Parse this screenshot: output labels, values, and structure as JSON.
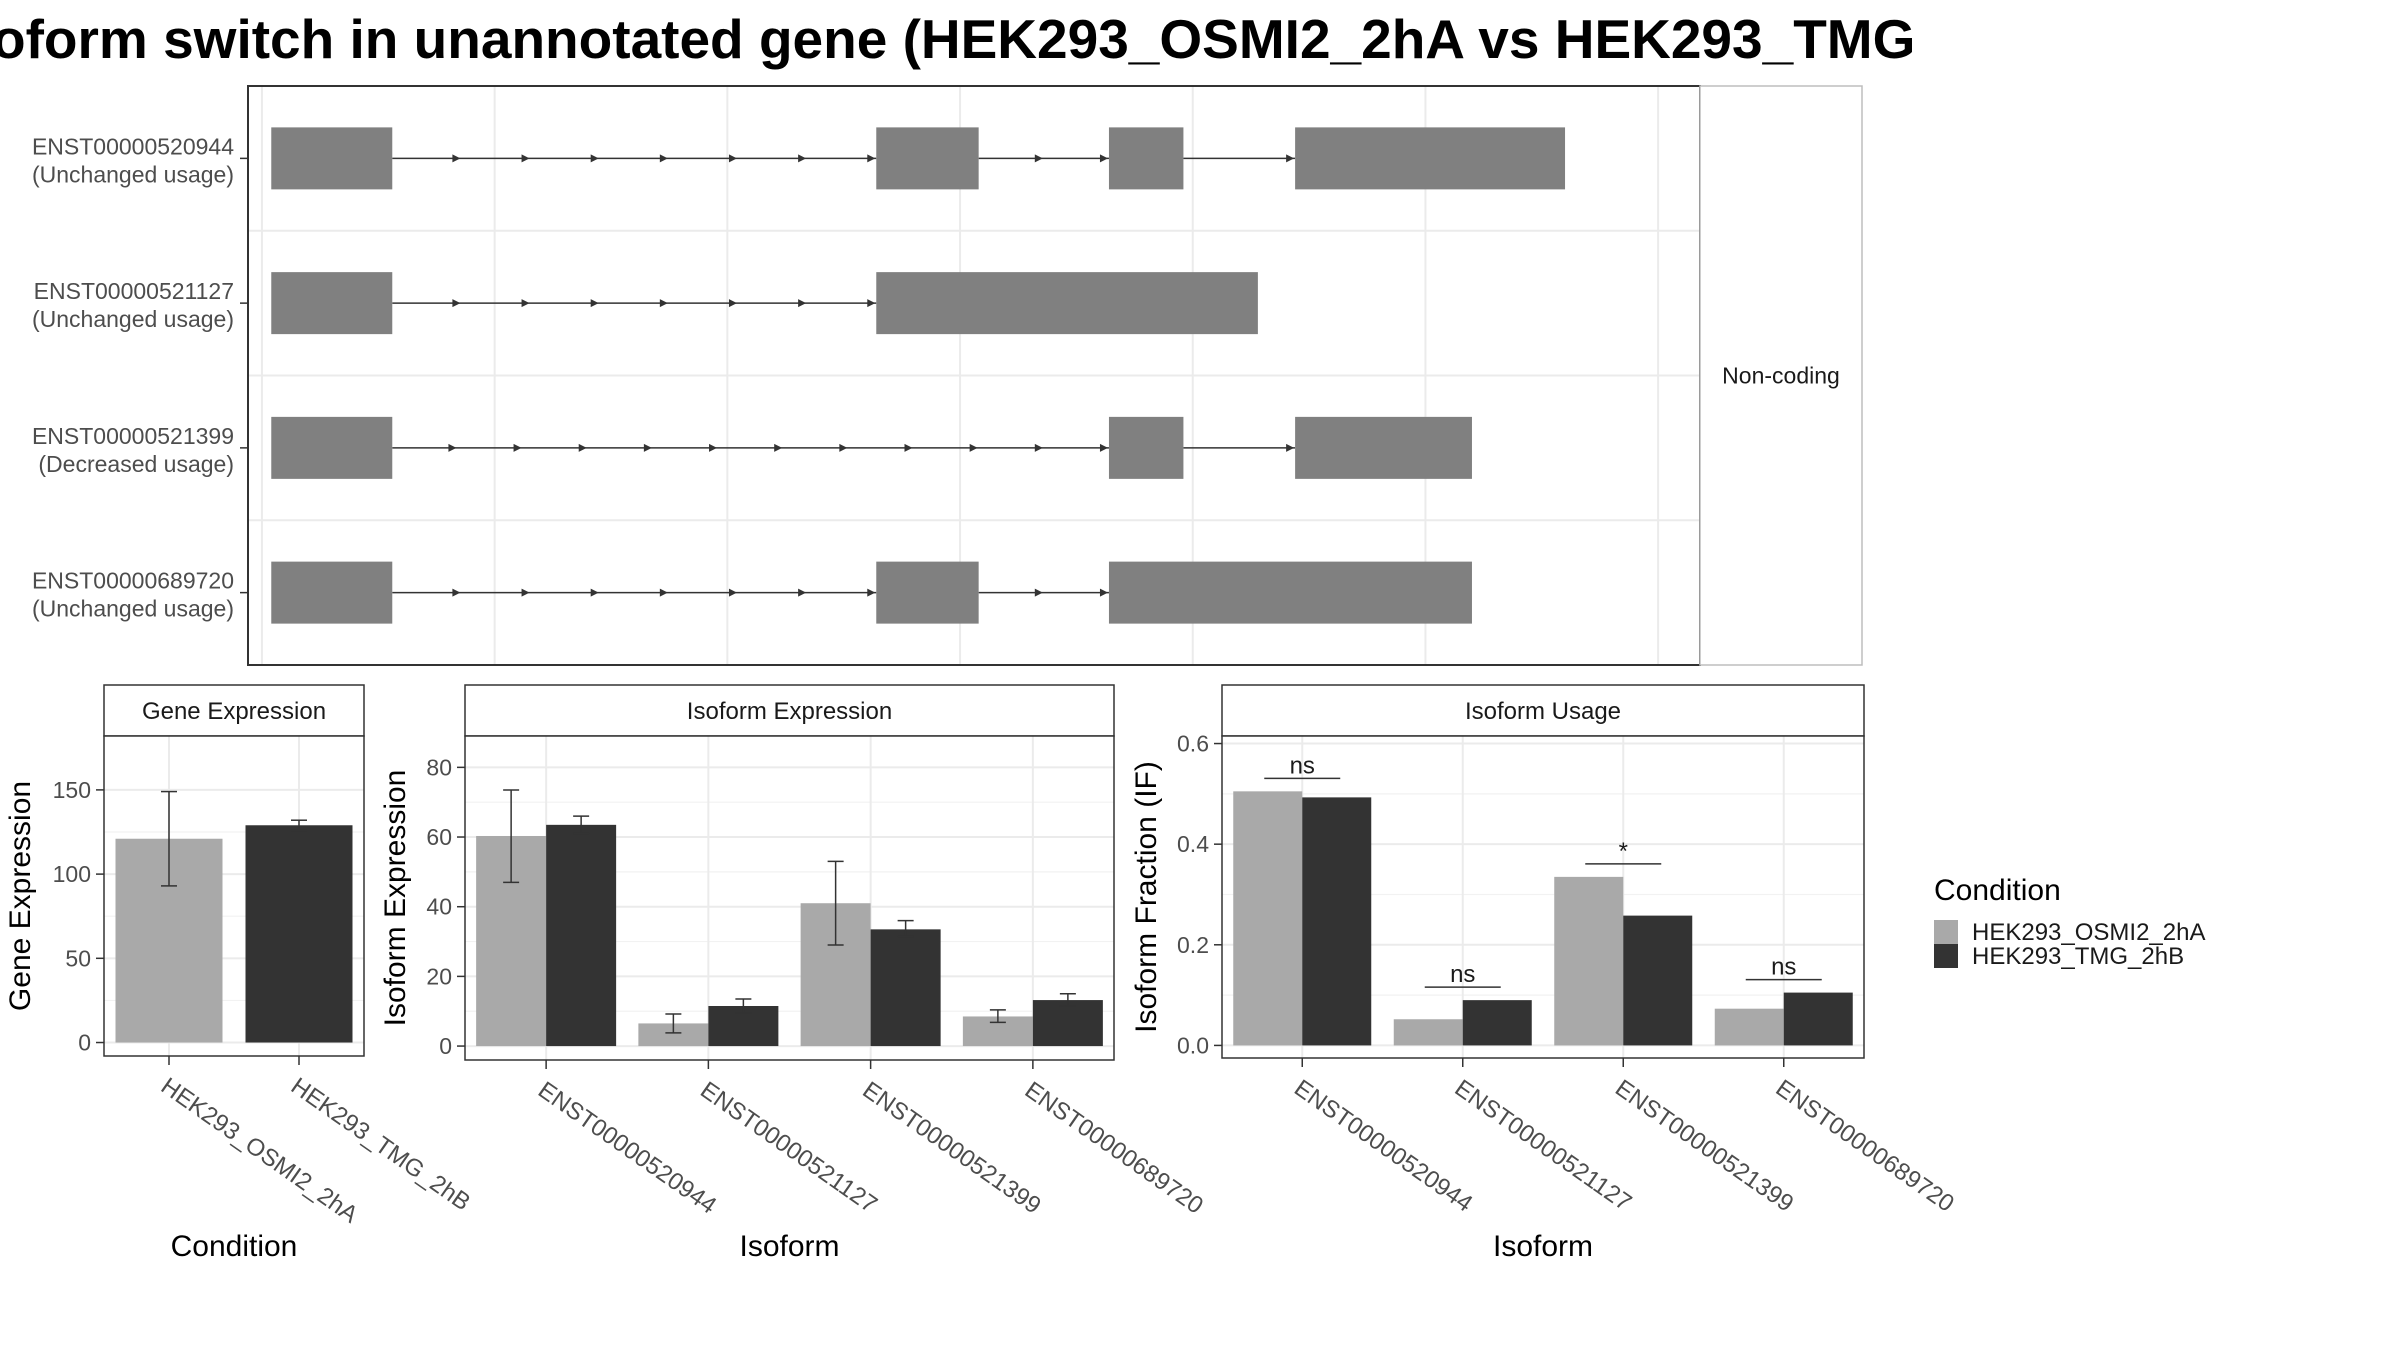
{
  "title": "oform switch in unannotated gene (HEK293_OSMI2_2hA vs HEK293_TMG",
  "colors": {
    "condition_a": "#a9a9a9",
    "condition_b": "#333333",
    "exon": "#808080",
    "grid": "#ebebeb",
    "strip_bg": "#ffffff"
  },
  "chart_data": [
    {
      "type": "gene-structure",
      "facet_label": "Non-coding",
      "x_range": [
        0,
        1000
      ],
      "transcripts": [
        {
          "id": "ENST00000520944",
          "usage": "(Unchanged usage)",
          "exons": [
            [
              10,
              140
            ],
            [
              660,
              770
            ],
            [
              910,
              990
            ],
            [
              1110,
              1400
            ]
          ]
        },
        {
          "id": "ENST00000521127",
          "usage": "(Unchanged usage)",
          "exons": [
            [
              10,
              140
            ],
            [
              660,
              1070
            ]
          ]
        },
        {
          "id": "ENST00000521399",
          "usage": "(Decreased usage)",
          "exons": [
            [
              10,
              140
            ],
            [
              910,
              990
            ],
            [
              1110,
              1300
            ]
          ]
        },
        {
          "id": "ENST00000689720",
          "usage": "(Unchanged usage)",
          "exons": [
            [
              10,
              140
            ],
            [
              660,
              770
            ],
            [
              910,
              1300
            ]
          ]
        }
      ],
      "x_grid": [
        0,
        250,
        500,
        750,
        1000,
        1250,
        1500
      ],
      "x_domain": [
        -15,
        1545
      ]
    },
    {
      "type": "bar",
      "title": "Gene Expression",
      "xlabel": "Condition",
      "ylabel": "Gene Expression",
      "categories": [
        "HEK293_OSMI2_2hA",
        "HEK293_TMG_2hB"
      ],
      "values": [
        121,
        129
      ],
      "errors": [
        [
          93,
          149
        ],
        [
          126,
          132
        ]
      ],
      "ylim": [
        -8,
        182
      ],
      "yticks": [
        0,
        50,
        100,
        150
      ]
    },
    {
      "type": "bar",
      "title": "Isoform Expression",
      "xlabel": "Isoform",
      "ylabel": "Isoform Expression",
      "categories": [
        "ENST00000520944",
        "ENST00000521127",
        "ENST00000521399",
        "ENST00000689720"
      ],
      "series": [
        {
          "name": "HEK293_OSMI2_2hA",
          "values": [
            60.3,
            6.5,
            41,
            8.5
          ],
          "errors": [
            [
              47,
              73.5
            ],
            [
              3.8,
              9.2
            ],
            [
              29,
              53
            ],
            [
              6.8,
              10.4
            ]
          ]
        },
        {
          "name": "HEK293_TMG_2hB",
          "values": [
            63.5,
            11.5,
            33.5,
            13.2
          ],
          "errors": [
            [
              61,
              66
            ],
            [
              9.5,
              13.5
            ],
            [
              31.5,
              36
            ],
            [
              11.5,
              15
            ]
          ]
        }
      ],
      "ylim": [
        -4,
        89
      ],
      "yticks": [
        0,
        20,
        40,
        60,
        80
      ]
    },
    {
      "type": "bar",
      "title": "Isoform Usage",
      "xlabel": "Isoform",
      "ylabel": "Isoform Fraction (IF)",
      "categories": [
        "ENST00000520944",
        "ENST00000521127",
        "ENST00000521399",
        "ENST00000689720"
      ],
      "series": [
        {
          "name": "HEK293_OSMI2_2hA",
          "values": [
            0.505,
            0.052,
            0.335,
            0.073
          ]
        },
        {
          "name": "HEK293_TMG_2hB",
          "values": [
            0.493,
            0.09,
            0.258,
            0.105
          ]
        }
      ],
      "annotations": [
        "ns",
        "ns",
        "*",
        "ns"
      ],
      "ylim": [
        -0.025,
        0.615
      ],
      "yticks": [
        0.0,
        0.2,
        0.4,
        0.6
      ],
      "ytick_labels": [
        "0.0",
        "0.2",
        "0.4",
        "0.6"
      ]
    }
  ],
  "legend": {
    "title": "Condition",
    "entries": [
      "HEK293_OSMI2_2hA",
      "HEK293_TMG_2hB"
    ],
    "position": "right"
  }
}
